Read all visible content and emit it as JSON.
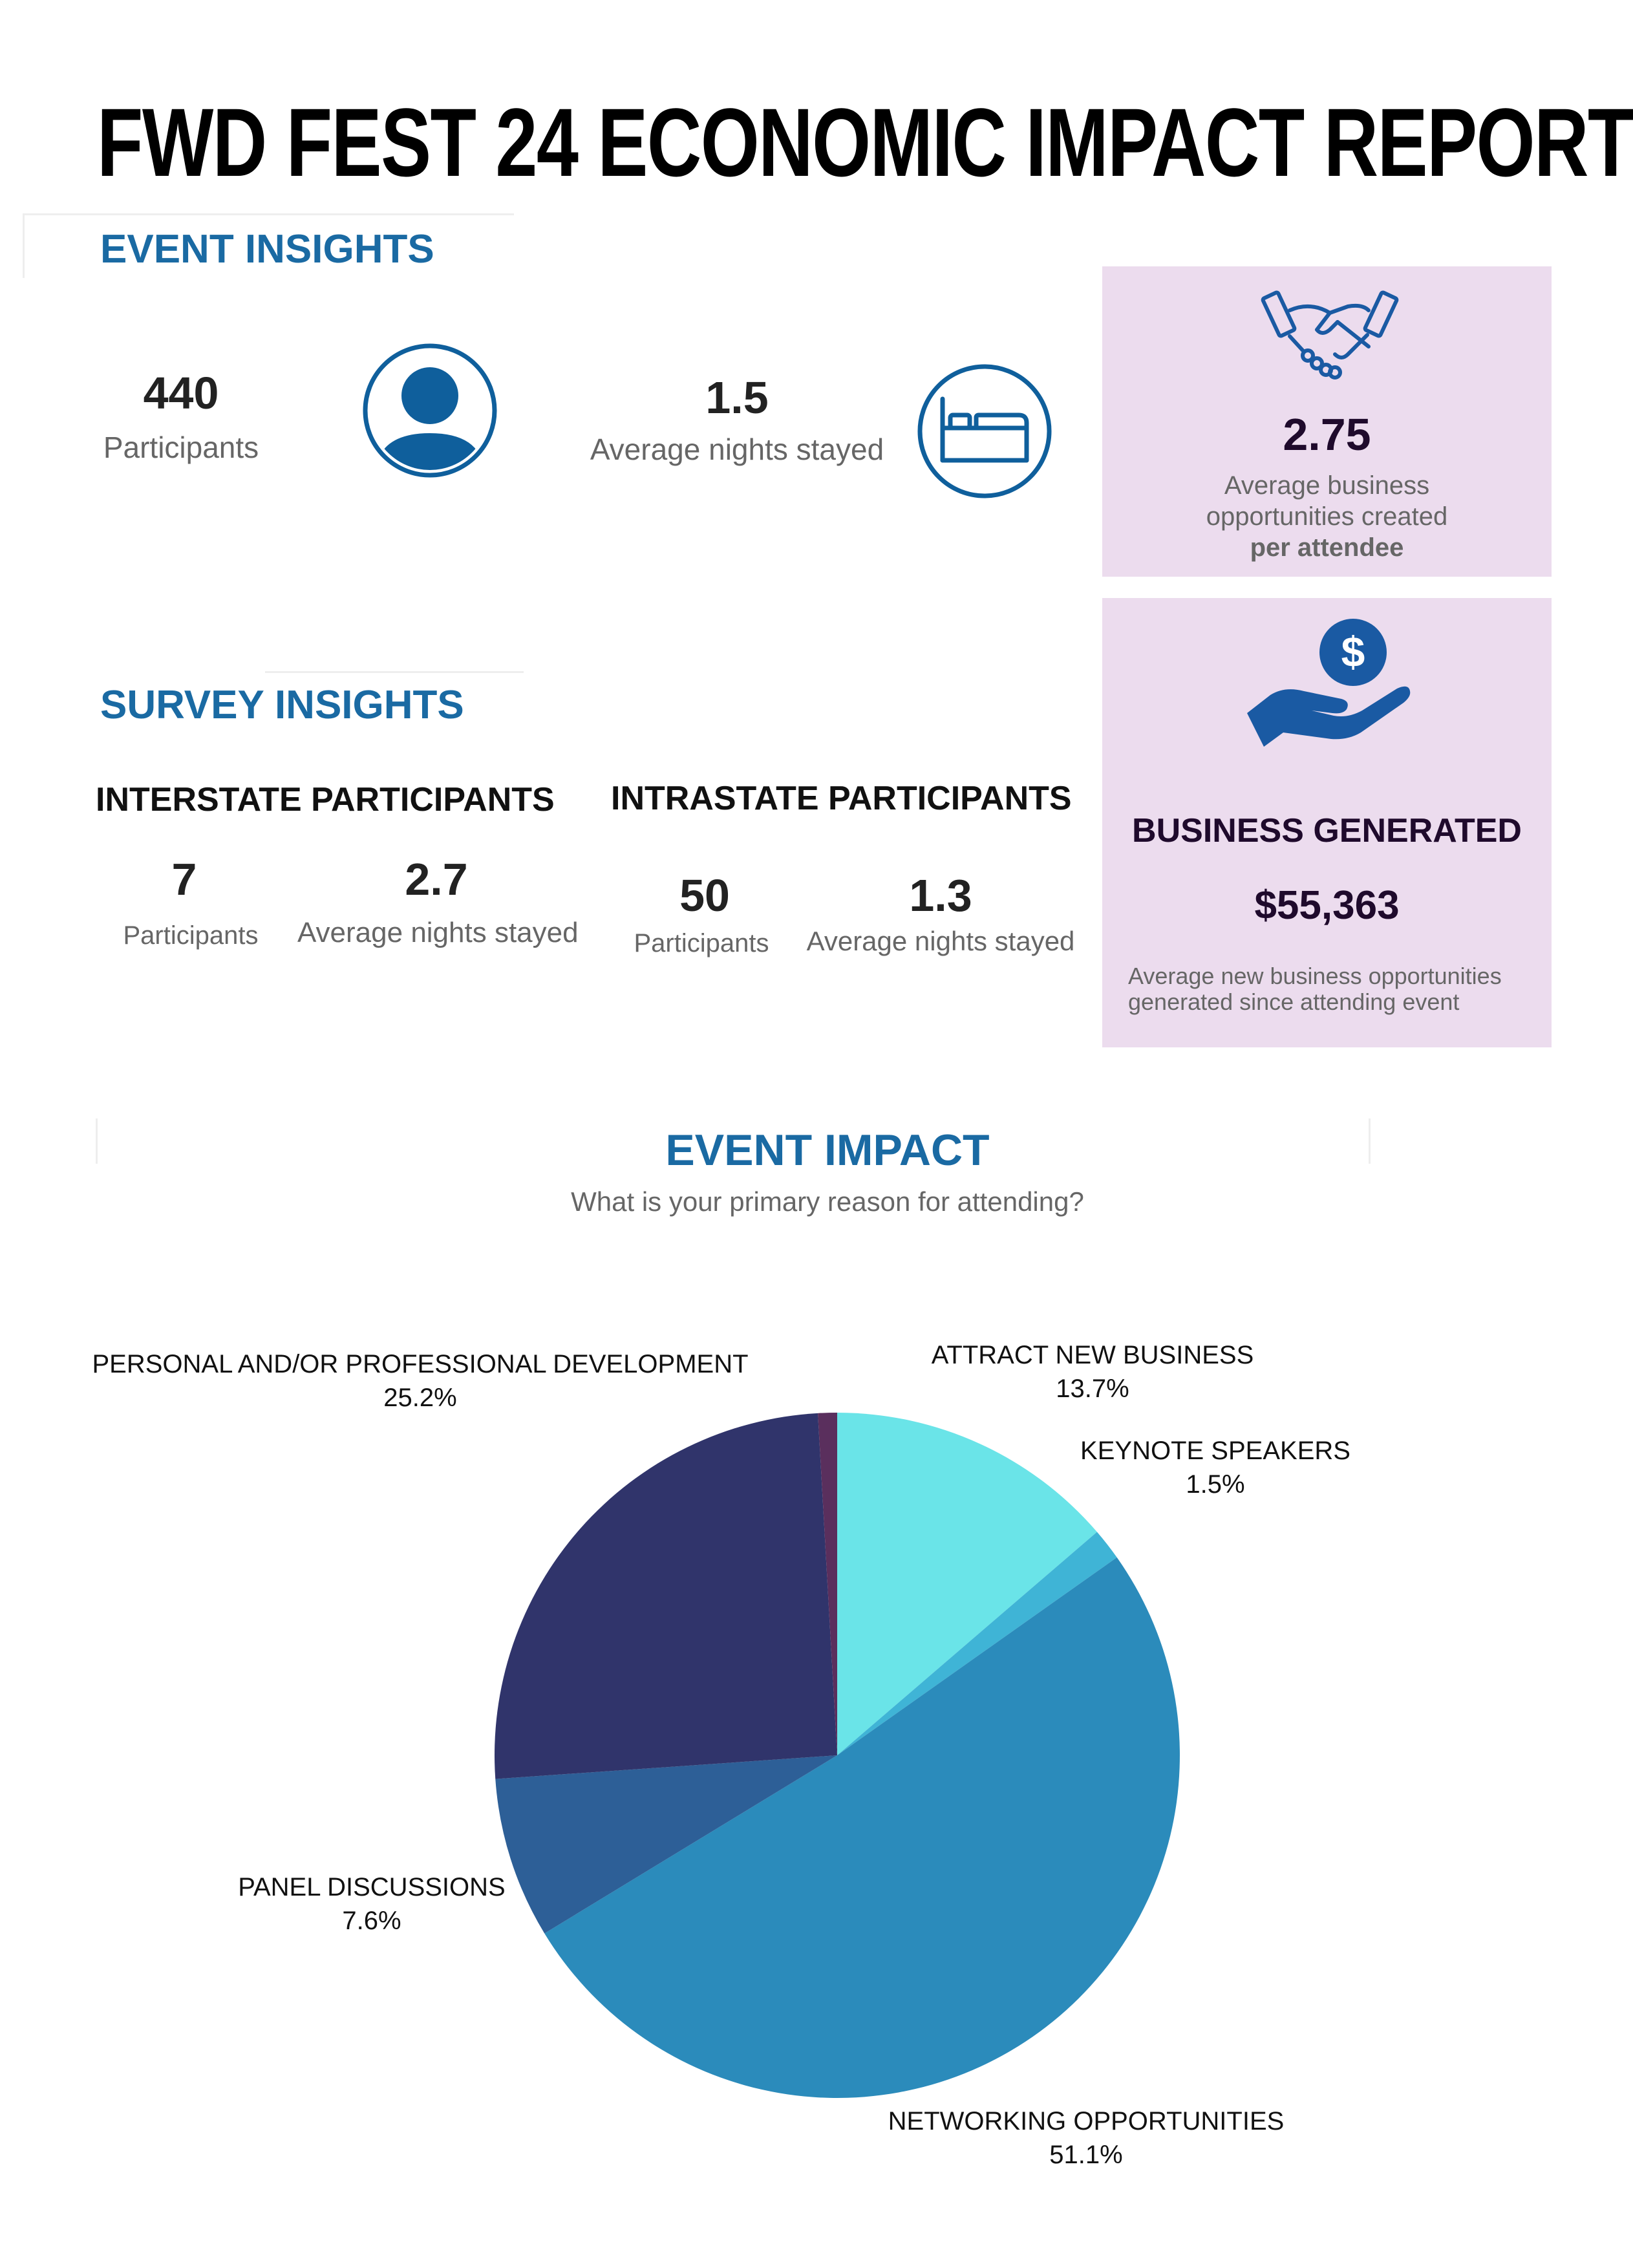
{
  "title": "FWD FEST 24 ECONOMIC IMPACT REPORT",
  "event_insights": {
    "heading": "EVENT INSIGHTS",
    "participants": {
      "value": "440",
      "label": "Participants",
      "icon": "person-icon"
    },
    "nights": {
      "value": "1.5",
      "label": "Average nights stayed",
      "icon": "bed-icon"
    }
  },
  "business_opportunities": {
    "icon": "handshake-icon",
    "value": "2.75",
    "label_line1": "Average business",
    "label_line2": "opportunities created",
    "label_line3": "per attendee"
  },
  "business_generated": {
    "icon": "dollar-hand-icon",
    "heading": "BUSINESS GENERATED",
    "value": "$55,363",
    "note_line1": "Average new business opportunities",
    "note_line2": "generated since attending event"
  },
  "survey_insights": {
    "heading": "SURVEY INSIGHTS",
    "interstate": {
      "heading": "INTERSTATE PARTICIPANTS",
      "participants_value": "7",
      "participants_label": "Participants",
      "nights_value": "2.7",
      "nights_label": "Average nights stayed"
    },
    "intrastate": {
      "heading": "INTRASTATE PARTICIPANTS",
      "participants_value": "50",
      "participants_label": "Participants",
      "nights_value": "1.3",
      "nights_label": "Average nights stayed"
    }
  },
  "event_impact": {
    "heading": "EVENT IMPACT",
    "question": "What is your primary reason for attending?"
  },
  "colors": {
    "accent_blue": "#1a6aa3",
    "box_purple": "#ecdcee"
  },
  "chart_data": {
    "type": "pie",
    "title": "",
    "slices": [
      {
        "label": "ATTRACT NEW BUSINESS",
        "value": 13.7,
        "display": "13.7%",
        "color": "#6ae4e8"
      },
      {
        "label": "KEYNOTE SPEAKERS",
        "value": 1.5,
        "display": "1.5%",
        "color": "#3fb4d6"
      },
      {
        "label": "NETWORKING OPPORTUNITIES",
        "value": 51.1,
        "display": "51.1%",
        "color": "#2b8bbb"
      },
      {
        "label": "PANEL DISCUSSIONS",
        "value": 7.6,
        "display": "7.6%",
        "color": "#2d5f97"
      },
      {
        "label": "PERSONAL AND/OR PROFESSIONAL DEVELOPMENT",
        "value": 25.2,
        "display": "25.2%",
        "color": "#30346b"
      },
      {
        "label": "",
        "value": 0.9,
        "display": "",
        "color": "#5a2f5d"
      }
    ]
  }
}
